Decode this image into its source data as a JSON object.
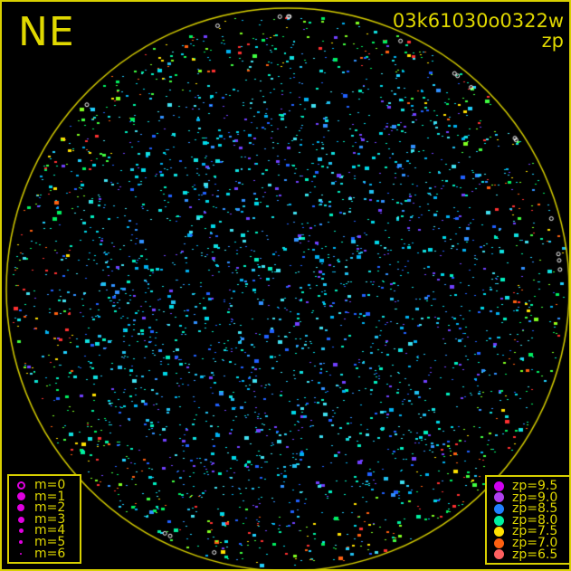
{
  "header": {
    "direction": "NE",
    "filename": "03k61030o0322w",
    "mode": "zp"
  },
  "colors": {
    "frame": "#d8d000",
    "horizon_circle": "#d8d000",
    "background": "#000000"
  },
  "magnitude_legend": {
    "symbol_color": "#e000e0",
    "items": [
      {
        "label": "m=0",
        "symbol": "ring"
      },
      {
        "label": "m=1",
        "symbol": "dot"
      },
      {
        "label": "m=2",
        "symbol": "dot"
      },
      {
        "label": "m=3",
        "symbol": "dot"
      },
      {
        "label": "m=4",
        "symbol": "dot"
      },
      {
        "label": "m=5",
        "symbol": "dot"
      },
      {
        "label": "m=6",
        "symbol": "dot"
      }
    ]
  },
  "zp_legend": {
    "items": [
      {
        "label": "zp=9.5",
        "color": "#d000f0"
      },
      {
        "label": "zp=9.0",
        "color": "#b040f0"
      },
      {
        "label": "zp=8.5",
        "color": "#2080ff"
      },
      {
        "label": "zp=8.0",
        "color": "#00f0a0"
      },
      {
        "label": "zp=7.5",
        "color": "#ffe000"
      },
      {
        "label": "zp=7.0",
        "color": "#ff6010"
      },
      {
        "label": "zp=6.5",
        "color": "#ff6060"
      }
    ]
  }
}
